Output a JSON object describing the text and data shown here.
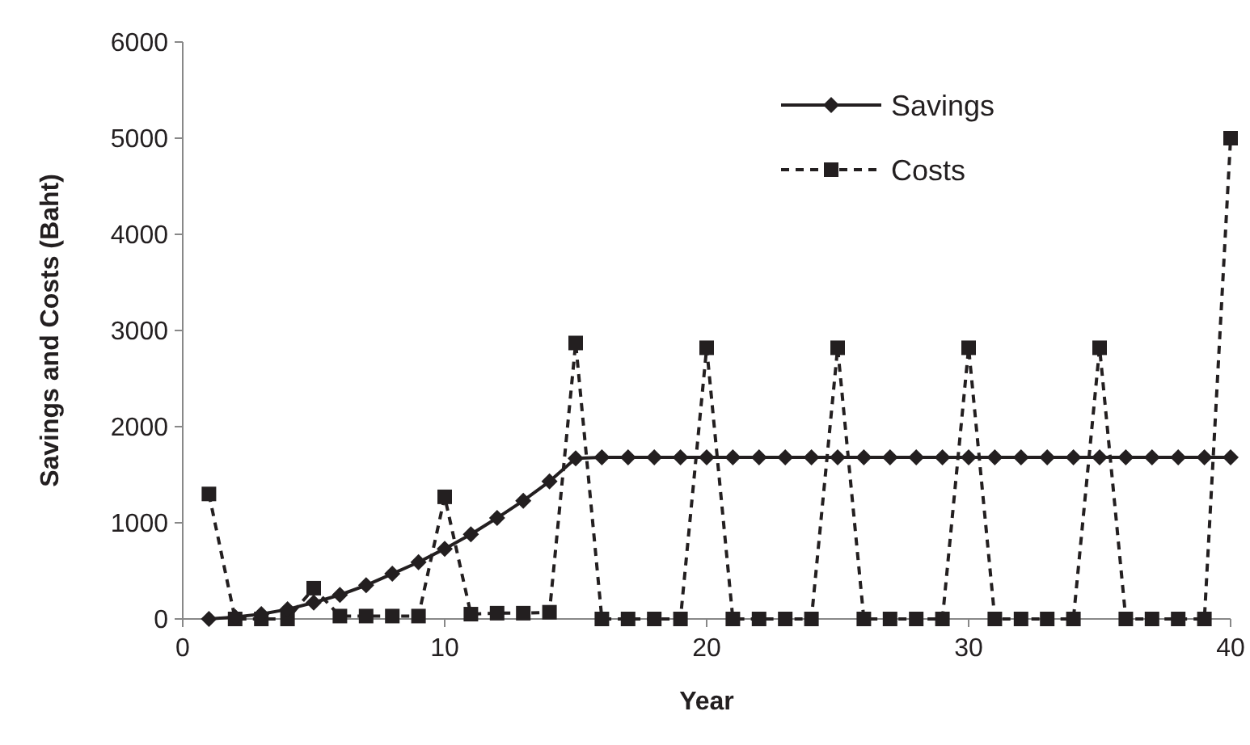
{
  "chart_data": {
    "type": "line",
    "xlabel": "Year",
    "ylabel": "Savings and Costs (Baht)",
    "x": [
      1,
      2,
      3,
      4,
      5,
      6,
      7,
      8,
      9,
      10,
      11,
      12,
      13,
      14,
      15,
      16,
      17,
      18,
      19,
      20,
      21,
      22,
      23,
      24,
      25,
      26,
      27,
      28,
      29,
      30,
      31,
      32,
      33,
      34,
      35,
      36,
      37,
      38,
      39,
      40
    ],
    "series": [
      {
        "name": "Savings",
        "color": "#231f20",
        "marker": "diamond",
        "line_style": "solid",
        "values": [
          0,
          20,
          50,
          100,
          170,
          250,
          350,
          470,
          590,
          730,
          880,
          1050,
          1230,
          1430,
          1670,
          1680,
          1680,
          1680,
          1680,
          1680,
          1680,
          1680,
          1680,
          1680,
          1680,
          1680,
          1680,
          1680,
          1680,
          1680,
          1680,
          1680,
          1680,
          1680,
          1680,
          1680,
          1680,
          1680,
          1680,
          1680
        ]
      },
      {
        "name": "Costs",
        "color": "#231f20",
        "marker": "square",
        "line_style": "dashed",
        "values": [
          1300,
          0,
          0,
          0,
          320,
          30,
          30,
          30,
          30,
          1270,
          50,
          60,
          60,
          70,
          2870,
          0,
          0,
          0,
          0,
          2820,
          0,
          0,
          0,
          0,
          2820,
          0,
          0,
          0,
          0,
          2820,
          0,
          0,
          0,
          0,
          2820,
          0,
          0,
          0,
          0,
          5000
        ]
      }
    ],
    "xlim": [
      0,
      40
    ],
    "xticks": [
      0,
      10,
      20,
      30,
      40
    ],
    "ylim": [
      0,
      6000
    ],
    "yticks": [
      0,
      1000,
      2000,
      3000,
      4000,
      5000,
      6000
    ],
    "grid": false,
    "legend": "top right"
  }
}
